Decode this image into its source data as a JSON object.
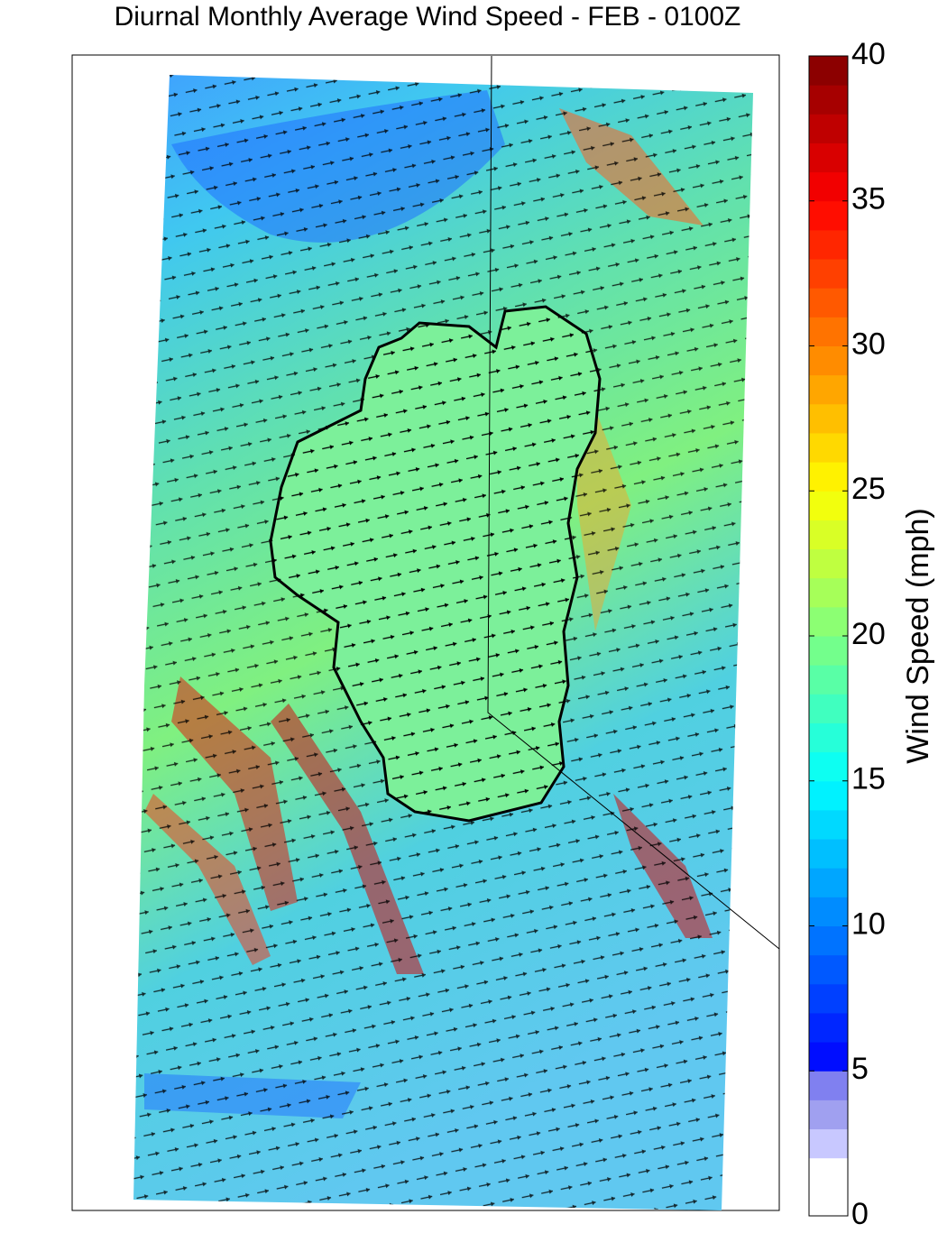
{
  "chart_data": {
    "type": "map",
    "title": "Diurnal Monthly Average Wind Speed - FEB - 0100Z",
    "colorbar": {
      "label": "Wind Speed (mph)",
      "colormap": "jet",
      "lim": [
        0,
        40
      ],
      "ticks": [
        0,
        5,
        10,
        15,
        20,
        25,
        30,
        35,
        40
      ]
    }
  }
}
